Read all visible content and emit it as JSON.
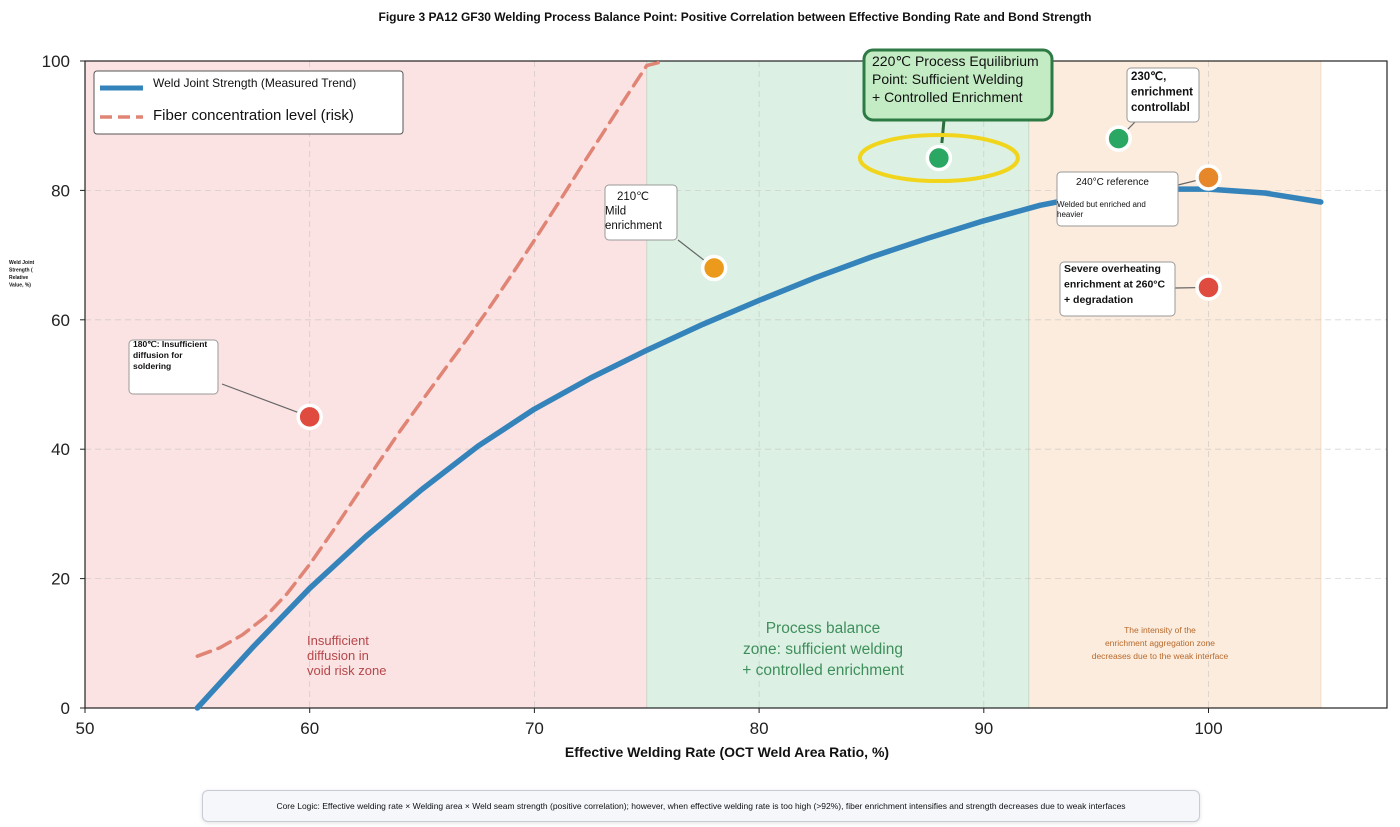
{
  "chart_data": {
    "type": "line",
    "title": "Figure 3 PA12 GF30 Welding Process Balance Point: Positive Correlation between Effective Bonding Rate and Bond Strength",
    "xlabel": "Effective Welding Rate (OCT Weld Area Ratio, %)",
    "ylabel": [
      "Weld Joint",
      "Strength (",
      "Relative",
      "Value, %)"
    ],
    "xlim": [
      50,
      108
    ],
    "ylim": [
      0,
      100
    ],
    "xticks": [
      50,
      60,
      70,
      80,
      90,
      100
    ],
    "yticks": [
      0,
      20,
      40,
      60,
      80,
      100
    ],
    "grid": true,
    "legend_position": "top-left",
    "zones": [
      {
        "name": "insufficient",
        "x": [
          50,
          75
        ],
        "color": "#fbe3e3",
        "label": [
          "Insufficient",
          "diffusion in",
          "void risk zone"
        ],
        "label_color": "#b5474a"
      },
      {
        "name": "balance",
        "x": [
          75,
          92
        ],
        "color": "#dcf1e4",
        "label": [
          "Process balance",
          "zone: sufficient welding",
          "+ controlled enrichment"
        ],
        "label_color": "#3f8f5c"
      },
      {
        "name": "enrichment",
        "x": [
          92,
          105
        ],
        "color": "#fbecdd",
        "label": [
          "The intensity of the",
          "enrichment aggregation zone",
          "decreases due to the weak interface"
        ],
        "label_color": "#b86a2d"
      }
    ],
    "series": [
      {
        "name": "Weld Joint Strength (Measured Trend)",
        "style": "solid",
        "color": "#3483ba",
        "x": [
          55,
          57.5,
          60,
          62.5,
          65,
          67.5,
          70,
          72.5,
          75,
          77.5,
          80,
          82.5,
          85,
          87.5,
          90,
          92.5,
          95,
          97.5,
          100,
          102.5,
          105
        ],
        "y": [
          0,
          9.5,
          18.5,
          26.5,
          33.8,
          40.5,
          46.2,
          51,
          55.3,
          59.3,
          63,
          66.5,
          69.7,
          72.6,
          75.3,
          77.7,
          79.4,
          80.2,
          80.2,
          79.6,
          78.2
        ]
      },
      {
        "name": "Fiber concentration level (risk)",
        "style": "dashed",
        "color": "#e08575",
        "x": [
          55,
          56,
          57,
          58,
          59,
          60,
          61,
          62,
          63,
          64,
          65,
          66,
          67,
          68,
          69,
          70,
          71,
          72,
          73,
          74,
          75,
          75.8
        ],
        "y": [
          8,
          9.3,
          11.3,
          14,
          17.7,
          22.2,
          27.2,
          32.4,
          37.6,
          42.7,
          47.5,
          52.3,
          57,
          61.9,
          67,
          72.3,
          77.7,
          83.2,
          88.6,
          94,
          99.3,
          100
        ]
      }
    ],
    "points": [
      {
        "x": 60,
        "y": 45,
        "color": "#e04b3f",
        "label": [
          "180℃: Insufficient",
          "diffusion for",
          "soldering"
        ]
      },
      {
        "x": 78,
        "y": 68,
        "color": "#ec9a1c",
        "label": [
          "210℃",
          "Mild",
          "enrichment"
        ]
      },
      {
        "x": 88,
        "y": 85,
        "color": "#2aa762",
        "label": [
          "220℃ Process Equilibrium",
          "Point: Sufficient Welding",
          "+ Controlled Enrichment"
        ],
        "highlight": true
      },
      {
        "x": 96,
        "y": 88,
        "color": "#2aa762",
        "label": [
          "230℃,",
          "enrichment",
          "controllabl"
        ]
      },
      {
        "x": 100,
        "y": 82,
        "color": "#e6882a",
        "label": [
          "240°C reference",
          "Welded but enriched and",
          "heavier"
        ]
      },
      {
        "x": 100,
        "y": 65,
        "color": "#e04b3f",
        "label": [
          "Severe overheating",
          "enrichment at 260°C",
          "+ degradation"
        ]
      }
    ]
  },
  "footer": {
    "text": "Core Logic: Effective welding rate × Welding area × Weld seam strength (positive correlation); however, when effective welding rate is too high (>92%), fiber enrichment intensifies and strength decreases due to weak interfaces"
  }
}
